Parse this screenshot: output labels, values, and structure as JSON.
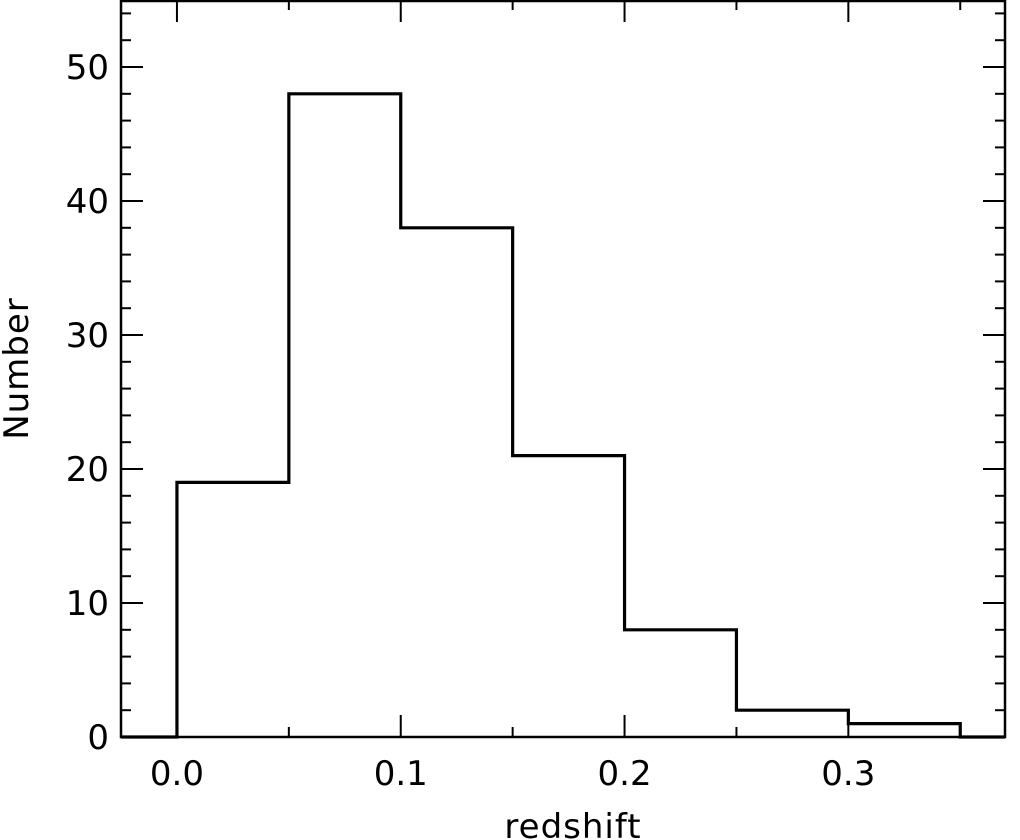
{
  "chart_data": {
    "type": "bar",
    "style": "step-histogram",
    "title": "",
    "xlabel": "redshift",
    "ylabel": "Number",
    "xlim": [
      -0.025,
      0.37
    ],
    "ylim": [
      0,
      55
    ],
    "bin_edges": [
      0.0,
      0.05,
      0.1,
      0.15,
      0.2,
      0.25,
      0.3,
      0.35
    ],
    "values": [
      19,
      48,
      38,
      21,
      8,
      2,
      1
    ],
    "x_ticks": [
      0.0,
      0.1,
      0.2,
      0.3
    ],
    "x_tick_labels": [
      "0.0",
      "0.1",
      "0.2",
      "0.3"
    ],
    "y_ticks": [
      0,
      10,
      20,
      30,
      40,
      50
    ],
    "y_tick_labels": [
      "0",
      "10",
      "20",
      "30",
      "40",
      "50"
    ],
    "x_minor_step": 0.05,
    "y_minor_step": 2,
    "grid": false,
    "legend": "none",
    "color": "#000000"
  }
}
